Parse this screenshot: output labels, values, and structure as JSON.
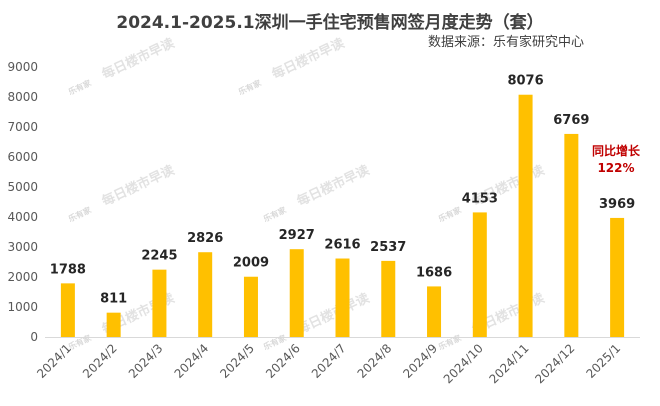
{
  "chart_data": {
    "type": "bar",
    "title": "2024.1-2025.1深圳一手住宅预售网签月度走势（套）",
    "source": "数据来源：乐有家研究中心",
    "categories": [
      "2024/1",
      "2024/2",
      "2024/3",
      "2024/4",
      "2024/5",
      "2024/6",
      "2024/7",
      "2024/8",
      "2024/9",
      "2024/10",
      "2024/11",
      "2024/12",
      "2025/1"
    ],
    "values": [
      1788,
      811,
      2245,
      2826,
      2009,
      2927,
      2616,
      2537,
      1686,
      4153,
      8076,
      6769,
      3969
    ],
    "ylim": [
      0,
      9000
    ],
    "yticks": [
      0,
      1000,
      2000,
      3000,
      4000,
      5000,
      6000,
      7000,
      8000,
      9000
    ],
    "grid": false,
    "bar_color": "#ffc000",
    "annotation": {
      "line1": "同比增长",
      "line2": "122%",
      "color": "#c00000"
    },
    "watermark": {
      "text": "每日楼市早读",
      "logo": "乐有家"
    }
  }
}
